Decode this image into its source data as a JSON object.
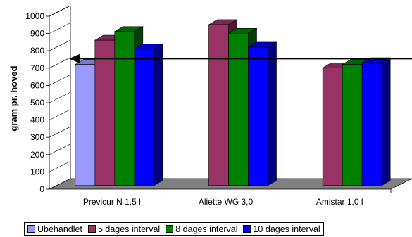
{
  "chart_data": {
    "type": "bar",
    "style": "3d-clustered",
    "ylabel": "gram pr. hoved",
    "xlabel": "",
    "title": "",
    "ylim": [
      0,
      1000
    ],
    "yticks": [
      0,
      100,
      200,
      300,
      400,
      500,
      600,
      700,
      800,
      900,
      1000
    ],
    "grid": false,
    "legend_position": "bottom",
    "categories": [
      "Previcur N 1,5 l",
      "Aliette WG 3,0",
      "Amistar 1,0 l"
    ],
    "series": [
      {
        "name": "Ubehandlet",
        "color": "#9999ff",
        "values": [
          700,
          null,
          null
        ]
      },
      {
        "name": "5 dages interval",
        "color": "#993366",
        "values": [
          840,
          930,
          680
        ]
      },
      {
        "name": "8 dages interval",
        "color": "#008000",
        "values": [
          890,
          880,
          700
        ]
      },
      {
        "name": "10 dages interval",
        "color": "#0000ff",
        "values": [
          790,
          800,
          710
        ]
      }
    ],
    "reference_line": {
      "value": 730,
      "style": "arrow-left"
    }
  }
}
